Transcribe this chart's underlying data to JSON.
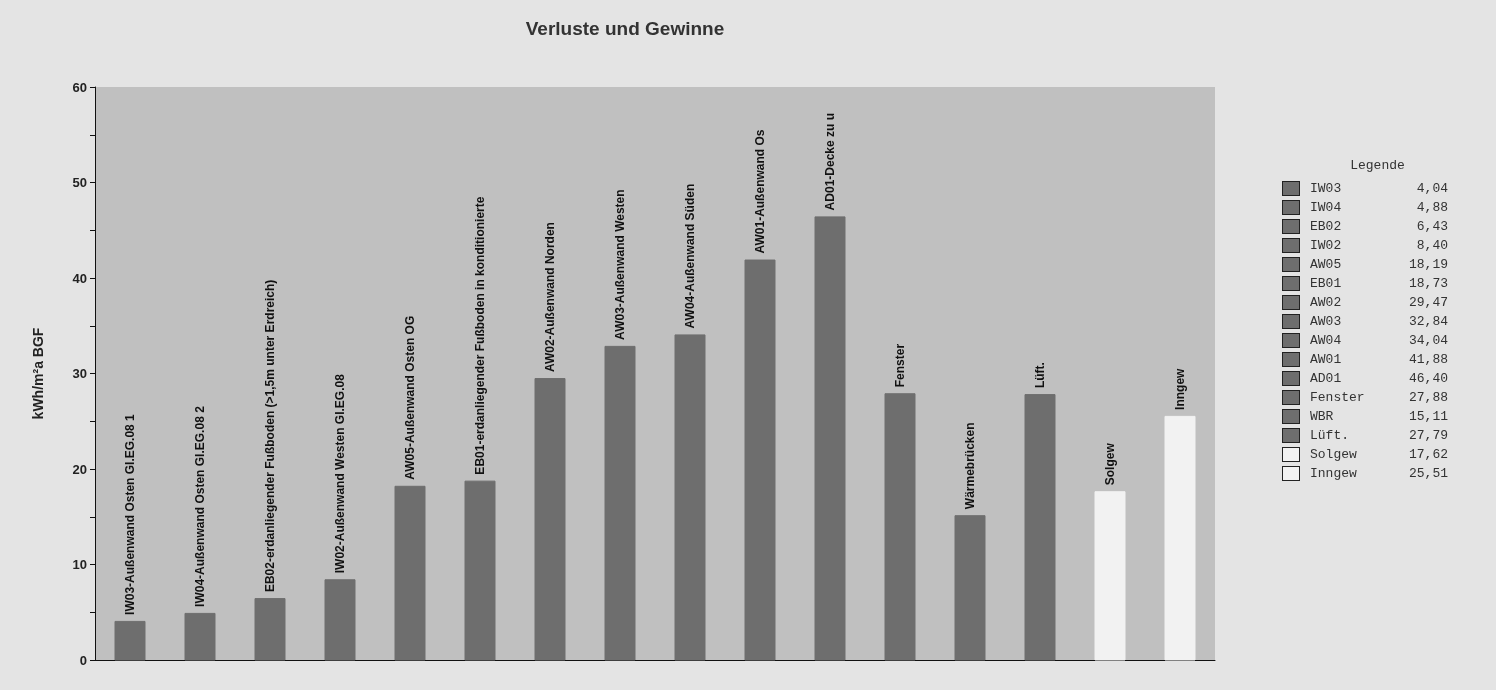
{
  "chart_data": [
    {
      "type": "bar",
      "title": "Verluste und Gewinne",
      "ylabel": "kWh/m²a BGF",
      "grid": false,
      "tick_labels": "y",
      "categories": [
        "IW03-Außenwand Osten GI.EG.08 1",
        "IW04-Außenwand Osten GI.EG.08 2",
        "EB02-erdanliegender Fußboden (>1,5m unter Erdreich)",
        "IW02-Außenwand Westen GI.EG.08",
        "AW05-Außenwand Osten OG",
        "EB01-erdanliegender Fußboden in konditionierte",
        "AW02-Außenwand Norden",
        "AW03-Außenwand Westen",
        "AW04-Außenwand Süden",
        "AW01-Außenwand Os",
        "AD01-Decke zu u",
        "Fenster",
        "Wärmebrücken",
        "Lüft.",
        "Solgew",
        "Inngew"
      ],
      "values": [
        4.04,
        4.88,
        6.43,
        8.4,
        18.19,
        18.73,
        29.47,
        32.84,
        34.04,
        41.88,
        46.4,
        27.88,
        15.11,
        27.79,
        17.62,
        25.51
      ],
      "colors": [
        "#6e6e6e",
        "#6e6e6e",
        "#6e6e6e",
        "#6e6e6e",
        "#6e6e6e",
        "#6e6e6e",
        "#6e6e6e",
        "#6e6e6e",
        "#6e6e6e",
        "#6e6e6e",
        "#6e6e6e",
        "#6e6e6e",
        "#6e6e6e",
        "#6e6e6e",
        "#f2f2f2",
        "#f2f2f2"
      ],
      "ylim": [
        0,
        60
      ],
      "yticks": [
        0,
        {
          "value": 5,
          "label": null
        },
        10,
        {
          "value": 15,
          "label": null
        },
        20,
        {
          "value": 25,
          "label": null
        },
        30,
        {
          "value": 35,
          "label": null
        },
        40,
        {
          "value": 45,
          "label": null
        },
        50,
        {
          "value": 55,
          "label": null
        },
        60
      ]
    },
    {
      "type": "other",
      "title": "Legende",
      "categories": [
        "IW03",
        "IW04",
        "EB02",
        "IW02",
        "AW05",
        "EB01",
        "AW02",
        "AW03",
        "AW04",
        "AW01",
        "AD01",
        "Fenster",
        "WBR",
        "Lüft.",
        "Solgew",
        "Inngew"
      ],
      "values": [
        4.04,
        4.88,
        6.43,
        8.4,
        18.19,
        18.73,
        29.47,
        32.84,
        34.04,
        41.88,
        46.4,
        27.88,
        15.11,
        27.79,
        17.62,
        25.51
      ],
      "value_labels": [
        "4,04",
        "4,88",
        "6,43",
        "8,40",
        "18,19",
        "18,73",
        "29,47",
        "32,84",
        "34,04",
        "41,88",
        "46,40",
        "27,88",
        "15,11",
        "27,79",
        "17,62",
        "25,51"
      ],
      "colors": [
        "#6e6e6e",
        "#6e6e6e",
        "#6e6e6e",
        "#6e6e6e",
        "#6e6e6e",
        "#6e6e6e",
        "#6e6e6e",
        "#6e6e6e",
        "#6e6e6e",
        "#6e6e6e",
        "#6e6e6e",
        "#6e6e6e",
        "#6e6e6e",
        "#6e6e6e",
        "#f2f2f2",
        "#f2f2f2"
      ]
    }
  ]
}
